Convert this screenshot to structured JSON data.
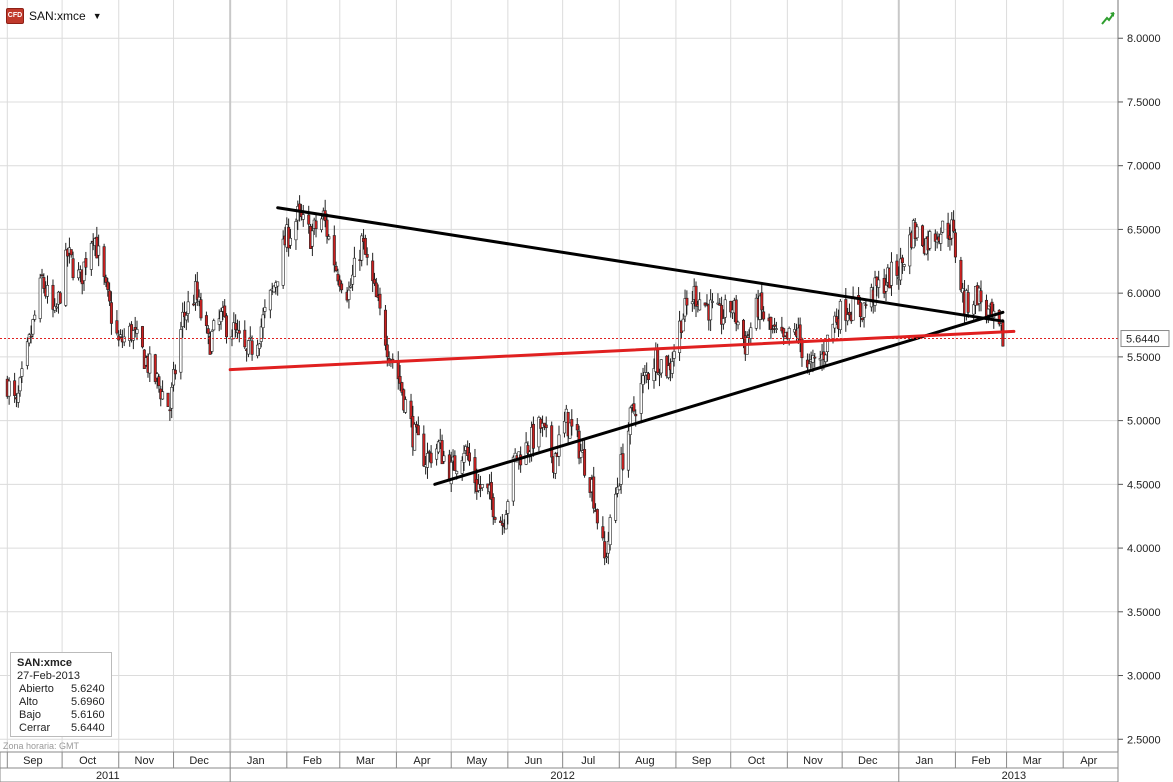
{
  "symbol": {
    "name": "SAN:xmce",
    "icon": "cfd-icon",
    "icon_text": "CFD",
    "dropdown": "▼"
  },
  "info": {
    "title": "SAN:xmce",
    "date": "27-Feb-2013",
    "rows": [
      {
        "label": "Abierto",
        "value": "5.6240"
      },
      {
        "label": "Alto",
        "value": "5.6960"
      },
      {
        "label": "Bajo",
        "value": "5.6160"
      },
      {
        "label": "Cerrar",
        "value": "5.6440"
      }
    ]
  },
  "timezone": "Zona horaria: GMT",
  "colors": {
    "up": "#ffffff",
    "down": "#cc2020",
    "outline": "#222222",
    "trend_black": "#000000",
    "trend_red": "#e02020",
    "price_line": "#e02020",
    "grid": "#dcdcdc"
  },
  "chart_data": {
    "type": "candlestick",
    "instrument": "SAN:xmce",
    "y_ticks": [
      "8.0000",
      "7.5000",
      "7.0000",
      "6.5000",
      "6.0000",
      "5.5000",
      "5.0000",
      "4.5000",
      "4.0000",
      "3.5000",
      "3.0000",
      "2.5000"
    ],
    "ylim": [
      2.4,
      8.3
    ],
    "last_price": "5.6440",
    "month_ticks": [
      {
        "label": "Sep",
        "date": "2011-09-15"
      },
      {
        "label": "Oct",
        "date": "2011-10-15"
      },
      {
        "label": "Nov",
        "date": "2011-11-15"
      },
      {
        "label": "Dec",
        "date": "2011-12-15"
      },
      {
        "label": "Jan",
        "date": "2012-01-15"
      },
      {
        "label": "Feb",
        "date": "2012-02-15"
      },
      {
        "label": "Mar",
        "date": "2012-03-15"
      },
      {
        "label": "Apr",
        "date": "2012-04-15"
      },
      {
        "label": "May",
        "date": "2012-05-15"
      },
      {
        "label": "Jun",
        "date": "2012-06-15"
      },
      {
        "label": "Jul",
        "date": "2012-07-15"
      },
      {
        "label": "Aug",
        "date": "2012-08-15"
      },
      {
        "label": "Sep",
        "date": "2012-09-15"
      },
      {
        "label": "Oct",
        "date": "2012-10-15"
      },
      {
        "label": "Nov",
        "date": "2012-11-15"
      },
      {
        "label": "Dec",
        "date": "2012-12-15"
      },
      {
        "label": "Jan",
        "date": "2013-01-15"
      },
      {
        "label": "Feb",
        "date": "2013-02-15"
      },
      {
        "label": "Mar",
        "date": "2013-03-15"
      },
      {
        "label": "Apr",
        "date": "2013-04-15"
      }
    ],
    "year_labels": [
      {
        "label": "2011",
        "date": "2011-10-26"
      },
      {
        "label": "2012",
        "date": "2012-07-01"
      },
      {
        "label": "2013",
        "date": "2013-03-05"
      }
    ],
    "year_dividers": [
      "2012-01-01",
      "2013-01-01"
    ],
    "price_path": [
      [
        "2011-09-01",
        5.3
      ],
      [
        "2011-09-06",
        5.1
      ],
      [
        "2011-09-13",
        5.6
      ],
      [
        "2011-09-20",
        6.1
      ],
      [
        "2011-09-27",
        5.8
      ],
      [
        "2011-10-04",
        6.3
      ],
      [
        "2011-10-11",
        6.1
      ],
      [
        "2011-10-18",
        6.5
      ],
      [
        "2011-10-25",
        6.0
      ],
      [
        "2011-11-01",
        5.6
      ],
      [
        "2011-11-08",
        5.7
      ],
      [
        "2011-11-15",
        5.5
      ],
      [
        "2011-11-22",
        5.3
      ],
      [
        "2011-11-29",
        5.1
      ],
      [
        "2011-12-06",
        5.8
      ],
      [
        "2011-12-13",
        6.0
      ],
      [
        "2011-12-20",
        5.6
      ],
      [
        "2011-12-27",
        5.8
      ],
      [
        "2012-01-03",
        5.7
      ],
      [
        "2012-01-10",
        5.5
      ],
      [
        "2012-01-17",
        5.7
      ],
      [
        "2012-01-24",
        6.0
      ],
      [
        "2012-01-31",
        6.4
      ],
      [
        "2012-02-07",
        6.6
      ],
      [
        "2012-02-14",
        6.45
      ],
      [
        "2012-02-21",
        6.6
      ],
      [
        "2012-02-28",
        6.2
      ],
      [
        "2012-03-06",
        6.0
      ],
      [
        "2012-03-13",
        6.4
      ],
      [
        "2012-03-20",
        6.0
      ],
      [
        "2012-03-27",
        5.6
      ],
      [
        "2012-04-03",
        5.3
      ],
      [
        "2012-04-10",
        4.9
      ],
      [
        "2012-04-17",
        4.7
      ],
      [
        "2012-04-24",
        4.8
      ],
      [
        "2012-05-01",
        4.6
      ],
      [
        "2012-05-08",
        4.8
      ],
      [
        "2012-05-15",
        4.5
      ],
      [
        "2012-05-22",
        4.4
      ],
      [
        "2012-05-29",
        4.2
      ],
      [
        "2012-06-05",
        4.7
      ],
      [
        "2012-06-12",
        4.8
      ],
      [
        "2012-06-19",
        4.95
      ],
      [
        "2012-06-26",
        4.7
      ],
      [
        "2012-07-03",
        5.0
      ],
      [
        "2012-07-10",
        4.8
      ],
      [
        "2012-07-17",
        4.5
      ],
      [
        "2012-07-24",
        3.9
      ],
      [
        "2012-07-31",
        4.5
      ],
      [
        "2012-08-07",
        5.0
      ],
      [
        "2012-08-14",
        5.3
      ],
      [
        "2012-08-21",
        5.5
      ],
      [
        "2012-08-28",
        5.4
      ],
      [
        "2012-09-04",
        5.8
      ],
      [
        "2012-09-11",
        6.0
      ],
      [
        "2012-09-18",
        5.9
      ],
      [
        "2012-09-25",
        5.8
      ],
      [
        "2012-10-02",
        5.9
      ],
      [
        "2012-10-09",
        5.6
      ],
      [
        "2012-10-16",
        5.9
      ],
      [
        "2012-10-23",
        5.7
      ],
      [
        "2012-10-30",
        5.6
      ],
      [
        "2012-11-06",
        5.7
      ],
      [
        "2012-11-13",
        5.4
      ],
      [
        "2012-11-20",
        5.5
      ],
      [
        "2012-11-27",
        5.8
      ],
      [
        "2012-12-04",
        5.9
      ],
      [
        "2012-12-11",
        5.85
      ],
      [
        "2012-12-18",
        6.0
      ],
      [
        "2012-12-25",
        6.1
      ],
      [
        "2013-01-02",
        6.2
      ],
      [
        "2013-01-09",
        6.5
      ],
      [
        "2013-01-16",
        6.4
      ],
      [
        "2013-01-23",
        6.5
      ],
      [
        "2013-01-30",
        6.5
      ],
      [
        "2013-02-06",
        5.9
      ],
      [
        "2013-02-13",
        6.0
      ],
      [
        "2013-02-20",
        5.8
      ],
      [
        "2013-02-27",
        5.64
      ]
    ],
    "trendlines": [
      {
        "color": "black",
        "from": [
          "2012-01-27",
          6.67
        ],
        "to": [
          "2013-02-27",
          5.78
        ]
      },
      {
        "color": "black",
        "from": [
          "2012-04-22",
          4.5
        ],
        "to": [
          "2013-02-27",
          5.85
        ]
      },
      {
        "color": "red",
        "from": [
          "2012-01-01",
          5.4
        ],
        "to": [
          "2013-03-05",
          5.7
        ]
      }
    ]
  }
}
